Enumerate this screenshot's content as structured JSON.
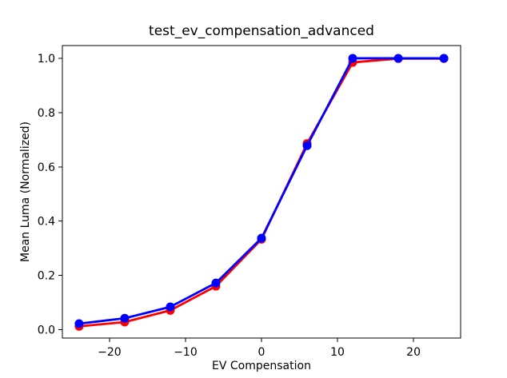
{
  "figure": {
    "background": "#ffffff",
    "text_color": "#000000",
    "axis_color": "#000000"
  },
  "chart_data": {
    "type": "line",
    "title": "test_ev_compensation_advanced",
    "xlabel": "EV Compensation",
    "ylabel": "Mean Luma (Normalized)",
    "x": [
      -24,
      -18,
      -12,
      -6,
      0,
      6,
      12,
      18,
      24
    ],
    "series": [
      {
        "name": "red",
        "color": "#ff0000",
        "marker": "circle",
        "values": [
          0.012,
          0.028,
          0.071,
          0.16,
          0.333,
          0.686,
          0.985,
          0.999,
          0.999
        ]
      },
      {
        "name": "blue",
        "color": "#0000ff",
        "marker": "circle",
        "values": [
          0.022,
          0.042,
          0.084,
          0.172,
          0.337,
          0.678,
          1.0,
          1.0,
          1.0
        ]
      }
    ],
    "xlim": [
      -26.2,
      26.2
    ],
    "ylim": [
      -0.031,
      1.047
    ],
    "xticks": [
      -20,
      -10,
      0,
      10,
      20
    ],
    "yticks": [
      0.0,
      0.2,
      0.4,
      0.6,
      0.8,
      1.0
    ],
    "xtick_labels": [
      "−20",
      "−10",
      "0",
      "10",
      "20"
    ],
    "ytick_labels": [
      "0.0",
      "0.2",
      "0.4",
      "0.6",
      "0.8",
      "1.0"
    ],
    "grid": false,
    "legend": null
  }
}
